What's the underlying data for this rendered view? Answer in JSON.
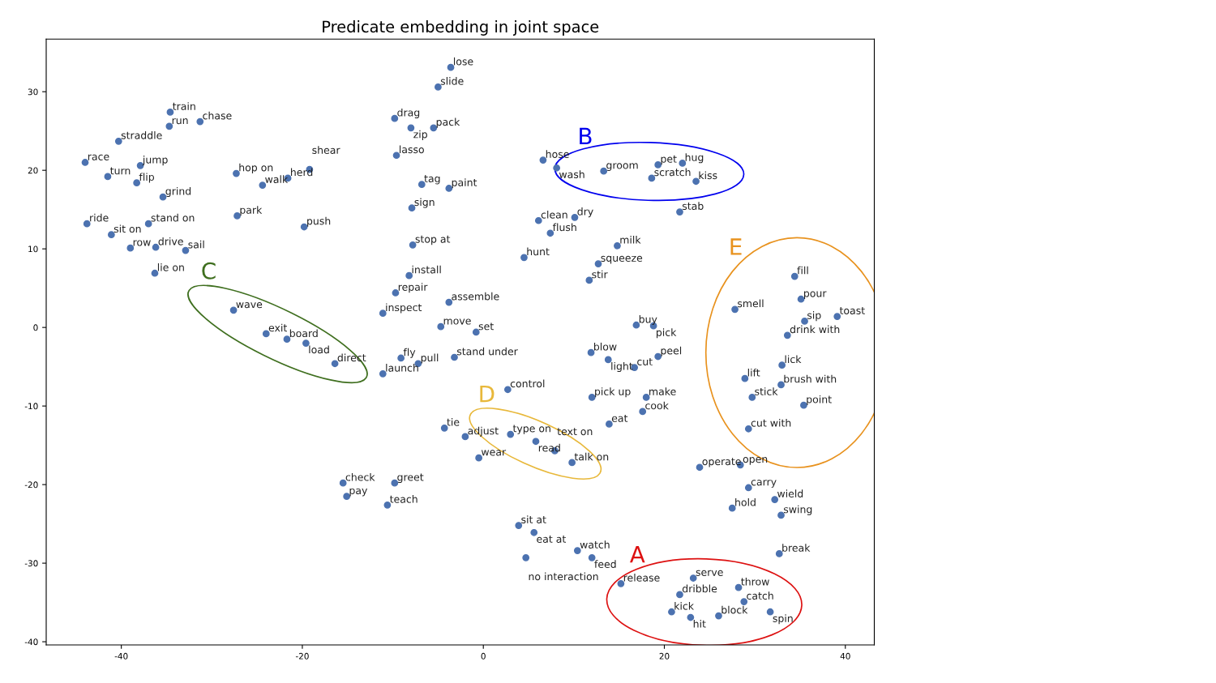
{
  "chart_data": {
    "type": "scatter",
    "title": "Predicate embedding in joint space",
    "xlim": [
      -48.3,
      43.2
    ],
    "ylim": [
      -40.4,
      36.7
    ],
    "xticks": [
      -40,
      -20,
      0,
      20,
      40
    ],
    "yticks": [
      -40,
      -30,
      -20,
      -10,
      0,
      10,
      20,
      30
    ],
    "grid": false,
    "legend": false,
    "marker": "circle",
    "annotations": [
      "A",
      "B",
      "C",
      "D",
      "E"
    ],
    "series": [
      {
        "color": "#4c72b0",
        "x": [
          -3.6,
          -5.0,
          -34.6,
          -31.3,
          -34.7,
          -40.3,
          -9.8,
          -8.0,
          -5.5,
          -44.0,
          -37.9,
          -41.5,
          -38.3,
          -35.4,
          -27.3,
          -24.4,
          -21.6,
          -19.2,
          -9.6,
          -6.8,
          -3.8,
          -7.9,
          -43.8,
          -37.0,
          -27.2,
          -19.8,
          -41.1,
          -39.0,
          -36.2,
          -32.9,
          -36.3,
          -7.8,
          -8.2,
          -9.7,
          -11.1,
          -3.8,
          -4.7,
          -0.8,
          -3.2,
          -9.1,
          -7.2,
          -11.1,
          6.6,
          8.1,
          6.1,
          10.1,
          7.4,
          21.7,
          14.8,
          4.5,
          12.7,
          11.7,
          16.9,
          18.8,
          11.9,
          13.8,
          19.3,
          16.7,
          2.7,
          12.0,
          18.0,
          17.6,
          13.9,
          -4.3,
          -2.0,
          -0.5,
          -15.5,
          -9.8,
          -15.1,
          -10.6,
          3.9,
          5.6,
          10.4,
          12.0,
          4.7,
          15.2,
          23.9,
          28.4,
          29.3,
          32.2,
          27.5,
          32.9,
          32.7
        ],
        "values": [
          33.1,
          30.6,
          27.4,
          26.2,
          25.6,
          23.7,
          26.6,
          25.4,
          25.4,
          21.0,
          20.6,
          19.2,
          18.4,
          16.6,
          19.6,
          18.1,
          19.0,
          20.1,
          21.9,
          18.2,
          17.7,
          15.2,
          13.2,
          13.2,
          14.2,
          12.8,
          11.8,
          10.1,
          10.2,
          9.8,
          6.9,
          10.5,
          6.6,
          4.4,
          1.8,
          3.2,
          0.1,
          -0.6,
          -3.8,
          -3.9,
          -4.6,
          -5.9,
          21.3,
          20.3,
          13.6,
          14.0,
          12.0,
          14.7,
          10.4,
          8.9,
          8.1,
          6.0,
          0.3,
          0.2,
          -3.2,
          -4.1,
          -3.7,
          -5.1,
          -7.9,
          -8.9,
          -8.9,
          -10.7,
          -12.3,
          -12.8,
          -13.9,
          -16.6,
          -19.8,
          -19.8,
          -21.5,
          -22.6,
          -25.2,
          -26.1,
          -28.4,
          -29.3,
          -29.3,
          -32.6,
          -17.8,
          -17.5,
          -20.4,
          -21.9,
          -23.0,
          -23.9,
          -28.8
        ],
        "value_labels": [
          "lose",
          "slide",
          "train",
          "chase",
          "run",
          "straddle",
          "drag",
          "zip",
          "pack",
          "race",
          "jump",
          "turn",
          "flip",
          "grind",
          "hop on",
          "walk",
          "herd",
          "shear",
          "lasso",
          "tag",
          "paint",
          "sign",
          "ride",
          "stand on",
          "park",
          "push",
          "sit on",
          "row",
          "drive",
          "sail",
          "lie on",
          "stop at",
          "install",
          "repair",
          "inspect",
          "assemble",
          "move",
          "set",
          "stand under",
          "fly",
          "pull",
          "launch",
          "hose",
          "wash",
          "clean",
          "dry",
          "flush",
          "stab",
          "milk",
          "hunt",
          "squeeze",
          "stir",
          "buy",
          "pick",
          "blow",
          "light",
          "peel",
          "cut",
          "control",
          "pick up",
          "make",
          "cook",
          "eat",
          "tie",
          "adjust",
          "wear",
          "check",
          "greet",
          "pay",
          "teach",
          "sit at",
          "eat at",
          "watch",
          "feed",
          "no interaction",
          "release",
          "operate",
          "open",
          "carry",
          "wield",
          "hold",
          "swing",
          "break"
        ]
      },
      {
        "color": "#4c72b0",
        "x": [
          23.2,
          28.2,
          21.7,
          28.8,
          20.8,
          22.9,
          26.0,
          31.7
        ],
        "values": [
          -31.9,
          -33.1,
          -34.0,
          -34.9,
          -36.2,
          -36.9,
          -36.7,
          -36.2
        ],
        "value_labels": [
          "serve",
          "throw",
          "dribble",
          "catch",
          "kick",
          "hit",
          "block",
          "spin"
        ]
      },
      {
        "color": "#4c72b0",
        "x": [
          13.3,
          19.3,
          22.0,
          18.6,
          23.5
        ],
        "values": [
          19.9,
          20.7,
          20.9,
          19.0,
          18.6
        ],
        "value_labels": [
          "groom",
          "pet",
          "hug",
          "scratch",
          "kiss"
        ]
      },
      {
        "color": "#4c72b0",
        "x": [
          -27.6,
          -24.0,
          -21.7,
          -19.6,
          -16.4
        ],
        "values": [
          2.2,
          -0.8,
          -1.5,
          -2.0,
          -4.6
        ],
        "value_labels": [
          "wave",
          "exit",
          "board",
          "load",
          "direct"
        ]
      },
      {
        "color": "#4c72b0",
        "x": [
          3.0,
          5.8,
          7.9,
          9.8
        ],
        "values": [
          -13.6,
          -14.5,
          -15.7,
          -17.2
        ],
        "value_labels": [
          "type on",
          "read",
          "text on",
          "talk on"
        ]
      },
      {
        "color": "#4c72b0",
        "x": [
          34.4,
          35.1,
          27.8,
          39.1,
          35.5,
          33.6,
          33.0,
          28.9,
          32.9,
          29.7,
          35.4,
          29.3
        ],
        "values": [
          6.5,
          3.6,
          2.3,
          1.4,
          0.8,
          -1.0,
          -4.8,
          -6.5,
          -7.3,
          -8.9,
          -9.9,
          -12.9
        ],
        "value_labels": [
          "fill",
          "pour",
          "smell",
          "toast",
          "sip",
          "drink with",
          "lick",
          "lift",
          "brush with",
          "stick",
          "point",
          "cut with"
        ]
      }
    ]
  }
}
